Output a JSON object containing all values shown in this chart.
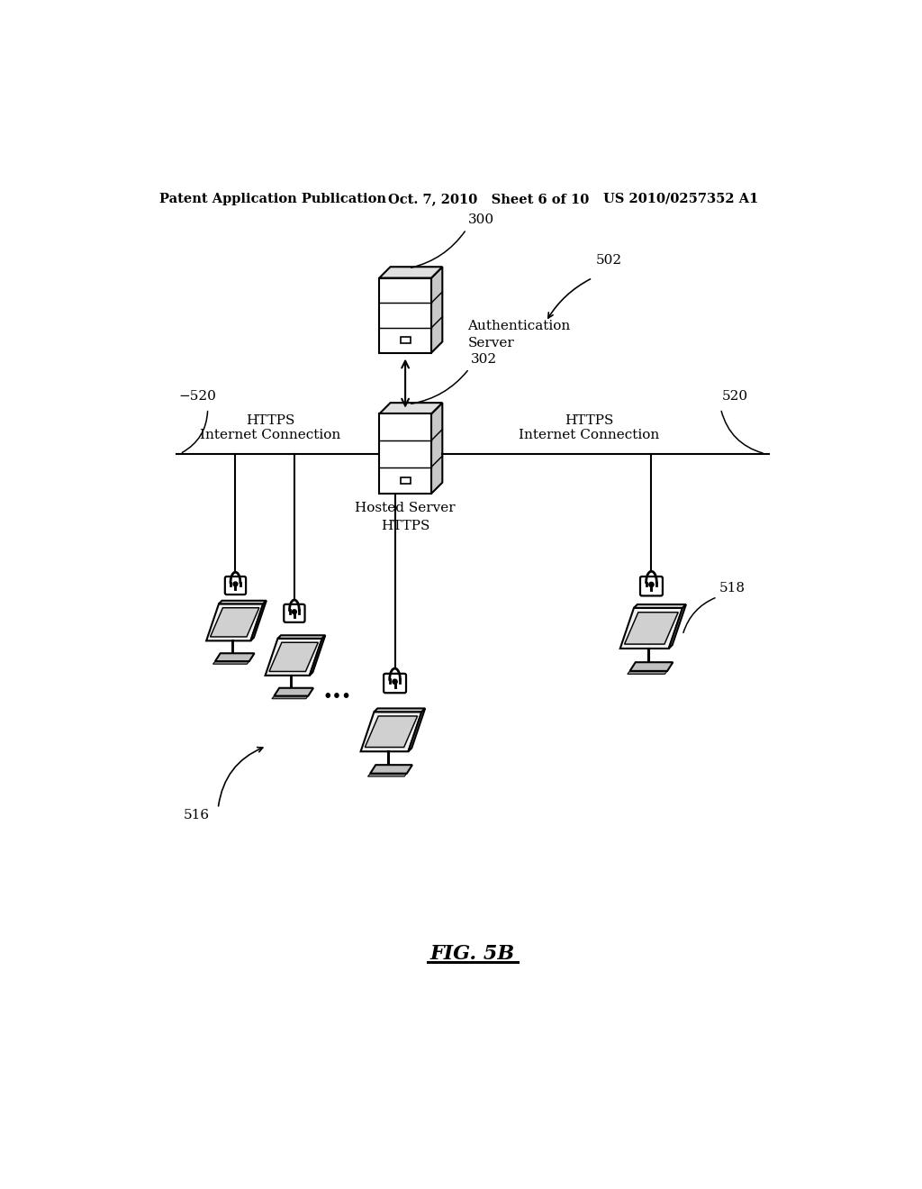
{
  "bg_color": "#ffffff",
  "header_left": "Patent Application Publication",
  "header_mid": "Oct. 7, 2010   Sheet 6 of 10",
  "header_right": "US 2010/0257352 A1",
  "figure_label": "FIG. 5B",
  "ref_300": "300",
  "ref_302": "302",
  "ref_502": "502",
  "ref_516": "516",
  "ref_518": "518",
  "ref_520": "520",
  "text_auth": "Authentication\nServer",
  "text_hosted": "Hosted Server\nHTTPS",
  "text_https": "HTTPS\nInternet Connection"
}
